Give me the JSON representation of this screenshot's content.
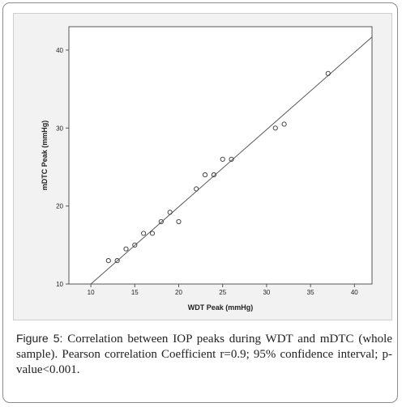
{
  "caption": {
    "label": "Figure 5:",
    "text": "Correlation between IOP peaks during WDT and mDTC (whole sample). Pearson correlation Coefficient r=0.9; 95% confidence interval; p-value<0.001."
  },
  "chart_data": {
    "type": "scatter",
    "title": "",
    "xlabel": "WDT Peak (mmHg)",
    "ylabel": "mDTC Peak (mmHg)",
    "xlim": [
      7.5,
      42
    ],
    "ylim": [
      10,
      43
    ],
    "xticks": [
      10,
      15,
      20,
      25,
      30,
      35,
      40
    ],
    "yticks": [
      10,
      20,
      30,
      40
    ],
    "grid": false,
    "points": [
      {
        "x": 12,
        "y": 13
      },
      {
        "x": 13,
        "y": 13
      },
      {
        "x": 14,
        "y": 14.5
      },
      {
        "x": 15,
        "y": 15
      },
      {
        "x": 16,
        "y": 16.5
      },
      {
        "x": 17,
        "y": 16.5
      },
      {
        "x": 18,
        "y": 18
      },
      {
        "x": 19,
        "y": 19.2
      },
      {
        "x": 20,
        "y": 18
      },
      {
        "x": 22,
        "y": 22.2
      },
      {
        "x": 23,
        "y": 24
      },
      {
        "x": 24,
        "y": 24
      },
      {
        "x": 25,
        "y": 26
      },
      {
        "x": 26,
        "y": 26
      },
      {
        "x": 31,
        "y": 30
      },
      {
        "x": 32,
        "y": 30.5
      },
      {
        "x": 37,
        "y": 37
      }
    ],
    "fit_line": {
      "slope": 0.99,
      "intercept": 0.1,
      "x_range": [
        10,
        42
      ]
    }
  }
}
